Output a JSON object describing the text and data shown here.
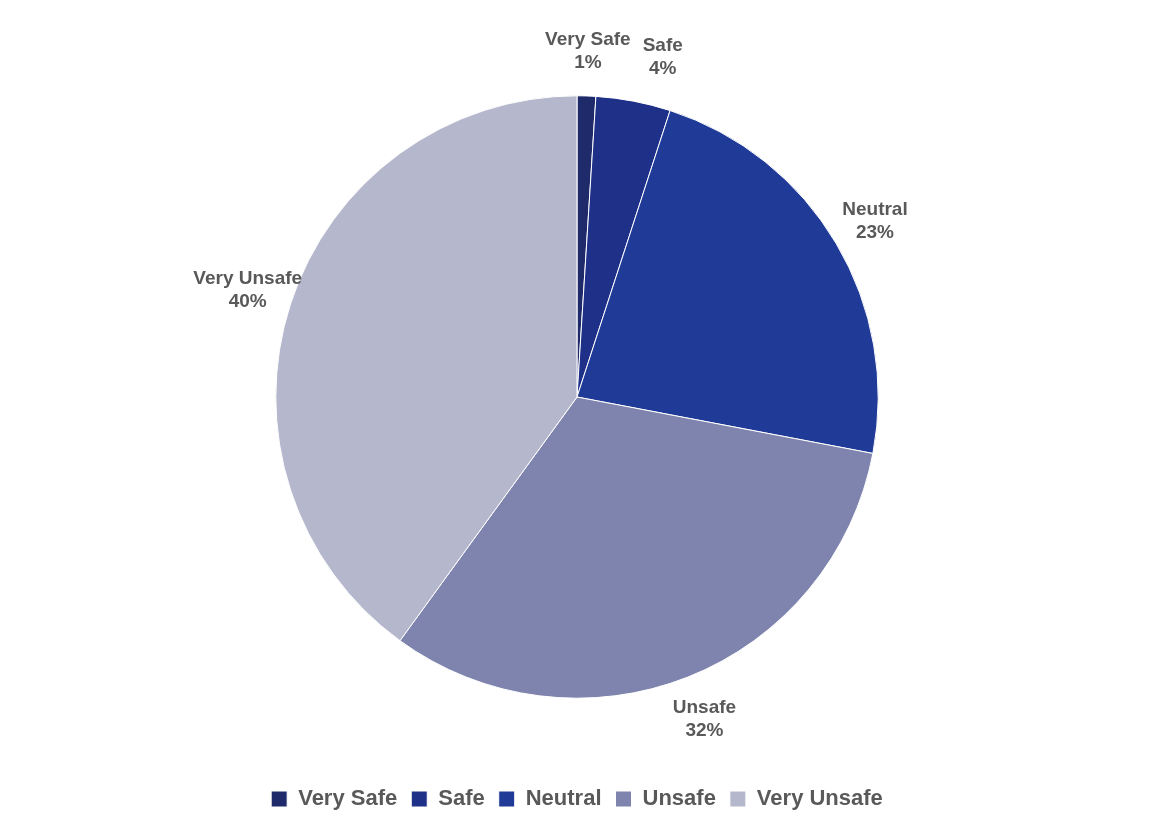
{
  "chart_data": {
    "type": "pie",
    "categories": [
      "Very Safe",
      "Safe",
      "Neutral",
      "Unsafe",
      "Very Unsafe"
    ],
    "values": [
      1,
      4,
      23,
      32,
      40
    ],
    "colors": [
      "#1f2a6b",
      "#1e3088",
      "#203a98",
      "#7e84ad",
      "#b5b8cd"
    ],
    "data_labels": true,
    "value_labels": [
      "1%",
      "4%",
      "23%",
      "32%",
      "40%"
    ],
    "legend": "bottom"
  }
}
